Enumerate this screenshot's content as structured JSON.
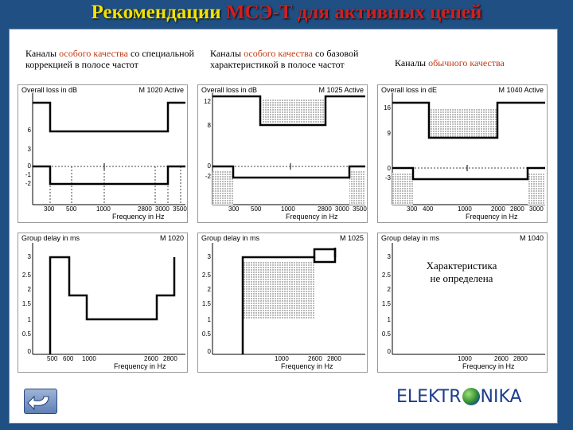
{
  "title_part1": "Рекомендации",
  "title_part2": "МСЭ-Т для активных цепей",
  "columns": [
    {
      "pre": "Каналы",
      "hl": "особого качества",
      "post": "со специальной коррекцией в полосе частот"
    },
    {
      "pre": "Каналы",
      "hl": "особого качества",
      "post": "со базовой характеристикой в полосе частот"
    },
    {
      "pre": "Каналы",
      "hl": "обычного качества",
      "post": ""
    }
  ],
  "loss_charts": [
    {
      "title": "Overall loss in dB",
      "model": "M 1020 Active",
      "xlabel": "Frequency in Hz",
      "yticks": [
        "6",
        "3",
        "0",
        "-1",
        "-2"
      ],
      "xticks": [
        "300",
        "500",
        "1000",
        "2800",
        "3000",
        "3500"
      ]
    },
    {
      "title": "Overall loss in dB",
      "model": "M 1025 Active",
      "xlabel": "Frequency in Hz",
      "yticks": [
        "12",
        "8",
        "0",
        "-2"
      ],
      "xticks": [
        "300",
        "500",
        "1000",
        "2800",
        "3000",
        "3500"
      ]
    },
    {
      "title": "Overall loss in dE",
      "model": "M 1040 Active",
      "xlabel": "Frequency in Hz",
      "yticks": [
        "16",
        "9",
        "0",
        "-3"
      ],
      "xticks": [
        "300",
        "400",
        "1000",
        "2000",
        "2800",
        "3000"
      ]
    }
  ],
  "delay_charts": [
    {
      "title": "Group delay in ms",
      "model": "M 1020",
      "xlabel": "Frequency in Hz",
      "yticks": [
        "3",
        "2.5",
        "2",
        "1.5",
        "1",
        "0.5",
        "0"
      ],
      "xticks": [
        "500",
        "600",
        "1000",
        "2600",
        "2800"
      ]
    },
    {
      "title": "Group delay in ms",
      "model": "M 1025",
      "xlabel": "Frequency in Hz",
      "yticks": [
        "3",
        "2.5",
        "2",
        "1.5",
        "1",
        "0.5",
        "0"
      ],
      "xticks": [
        "1000",
        "2600",
        "2800"
      ]
    },
    {
      "title": "Group delay in ms",
      "model": "M 1040",
      "xlabel": "Frequency in Hz",
      "yticks": [
        "3",
        "2.5",
        "2",
        "1.5",
        "1",
        "0.5",
        "0"
      ],
      "xticks": [
        "1000",
        "2600",
        "2800"
      ]
    }
  ],
  "undefined_line1": "Характеристика",
  "undefined_line2": "не определена",
  "logo_left": "ELEKTR",
  "logo_right": "NIKA",
  "icons": {
    "back": "back-arrow-icon",
    "logo": "globe-icon"
  },
  "colors": {
    "background": "#1f4f83",
    "title": "#f2e200",
    "accent": "#d11f1f",
    "highlight": "#c23a10"
  }
}
